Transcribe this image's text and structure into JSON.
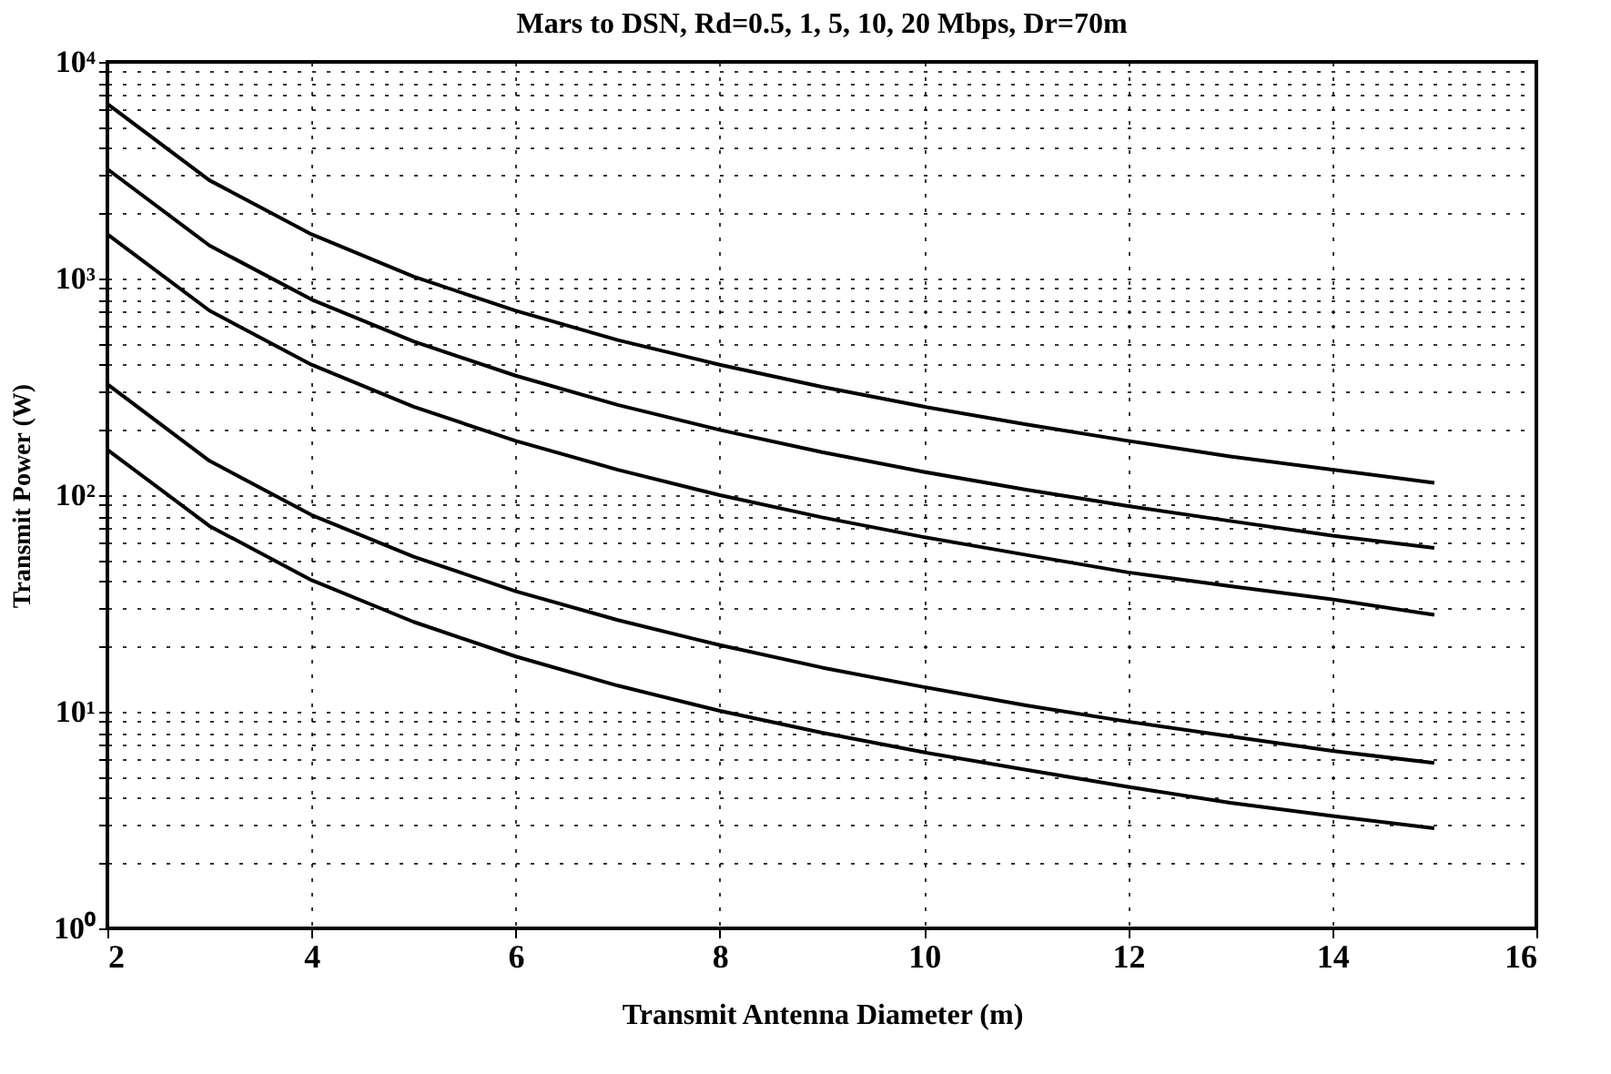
{
  "chart_data": {
    "type": "line",
    "title": "Mars to DSN, Rd=0.5, 1, 5, 10, 20 Mbps, Dr=70m",
    "xlabel": "Transmit Antenna Diameter (m)",
    "ylabel": "Transmit Power (W)",
    "x": [
      2,
      3,
      4,
      5,
      6,
      7,
      8,
      9,
      10,
      11,
      12,
      13,
      14,
      15
    ],
    "series": [
      {
        "color": "#000000",
        "values": [
          6400,
          2840,
          1600,
          1020,
          710,
          520,
          400,
          316,
          256,
          212,
          178,
          151,
          131,
          114
        ]
      },
      {
        "color": "#000000",
        "values": [
          3200,
          1420,
          800,
          512,
          356,
          261,
          200,
          158,
          128,
          106,
          89,
          76,
          65,
          57
        ]
      },
      {
        "color": "#000000",
        "values": [
          1600,
          711,
          400,
          256,
          178,
          131,
          100,
          79,
          64,
          53,
          44,
          38,
          33,
          28
        ]
      },
      {
        "color": "#000000",
        "values": [
          325,
          144,
          81,
          52,
          36,
          26.5,
          20.3,
          16,
          13,
          10.7,
          9,
          7.7,
          6.6,
          5.8
        ]
      },
      {
        "color": "#000000",
        "values": [
          162,
          72,
          40.5,
          26,
          18,
          13.2,
          10.1,
          8,
          6.5,
          5.4,
          4.5,
          3.8,
          3.3,
          2.9
        ]
      }
    ],
    "xlim": [
      2,
      16
    ],
    "xticks": [
      2,
      4,
      6,
      8,
      10,
      12,
      14,
      16
    ],
    "log": true,
    "ylim": [
      1,
      10000
    ],
    "yticks": [
      {
        "value": 1,
        "label": "10⁰"
      },
      {
        "value": 2,
        "label": null
      },
      {
        "value": 3,
        "label": null
      },
      {
        "value": 4,
        "label": null
      },
      {
        "value": 5,
        "label": null
      },
      {
        "value": 6,
        "label": null
      },
      {
        "value": 7,
        "label": null
      },
      {
        "value": 8,
        "label": null
      },
      {
        "value": 9,
        "label": null
      },
      {
        "value": 10,
        "label": "10¹"
      },
      {
        "value": 20,
        "label": null
      },
      {
        "value": 30,
        "label": null
      },
      {
        "value": 40,
        "label": null
      },
      {
        "value": 50,
        "label": null
      },
      {
        "value": 60,
        "label": null
      },
      {
        "value": 70,
        "label": null
      },
      {
        "value": 80,
        "label": null
      },
      {
        "value": 90,
        "label": null
      },
      {
        "value": 100,
        "label": "10²"
      },
      {
        "value": 200,
        "label": null
      },
      {
        "value": 300,
        "label": null
      },
      {
        "value": 400,
        "label": null
      },
      {
        "value": 500,
        "label": null
      },
      {
        "value": 600,
        "label": null
      },
      {
        "value": 700,
        "label": null
      },
      {
        "value": 800,
        "label": null
      },
      {
        "value": 900,
        "label": null
      },
      {
        "value": 1000,
        "label": "10³"
      },
      {
        "value": 2000,
        "label": null
      },
      {
        "value": 3000,
        "label": null
      },
      {
        "value": 4000,
        "label": null
      },
      {
        "value": 5000,
        "label": null
      },
      {
        "value": 6000,
        "label": null
      },
      {
        "value": 7000,
        "label": null
      },
      {
        "value": 8000,
        "label": null
      },
      {
        "value": 9000,
        "label": null
      },
      {
        "value": 10000,
        "label": "10⁴"
      }
    ],
    "grid": true,
    "marker": "none",
    "line_style": "solid",
    "legend": false
  }
}
